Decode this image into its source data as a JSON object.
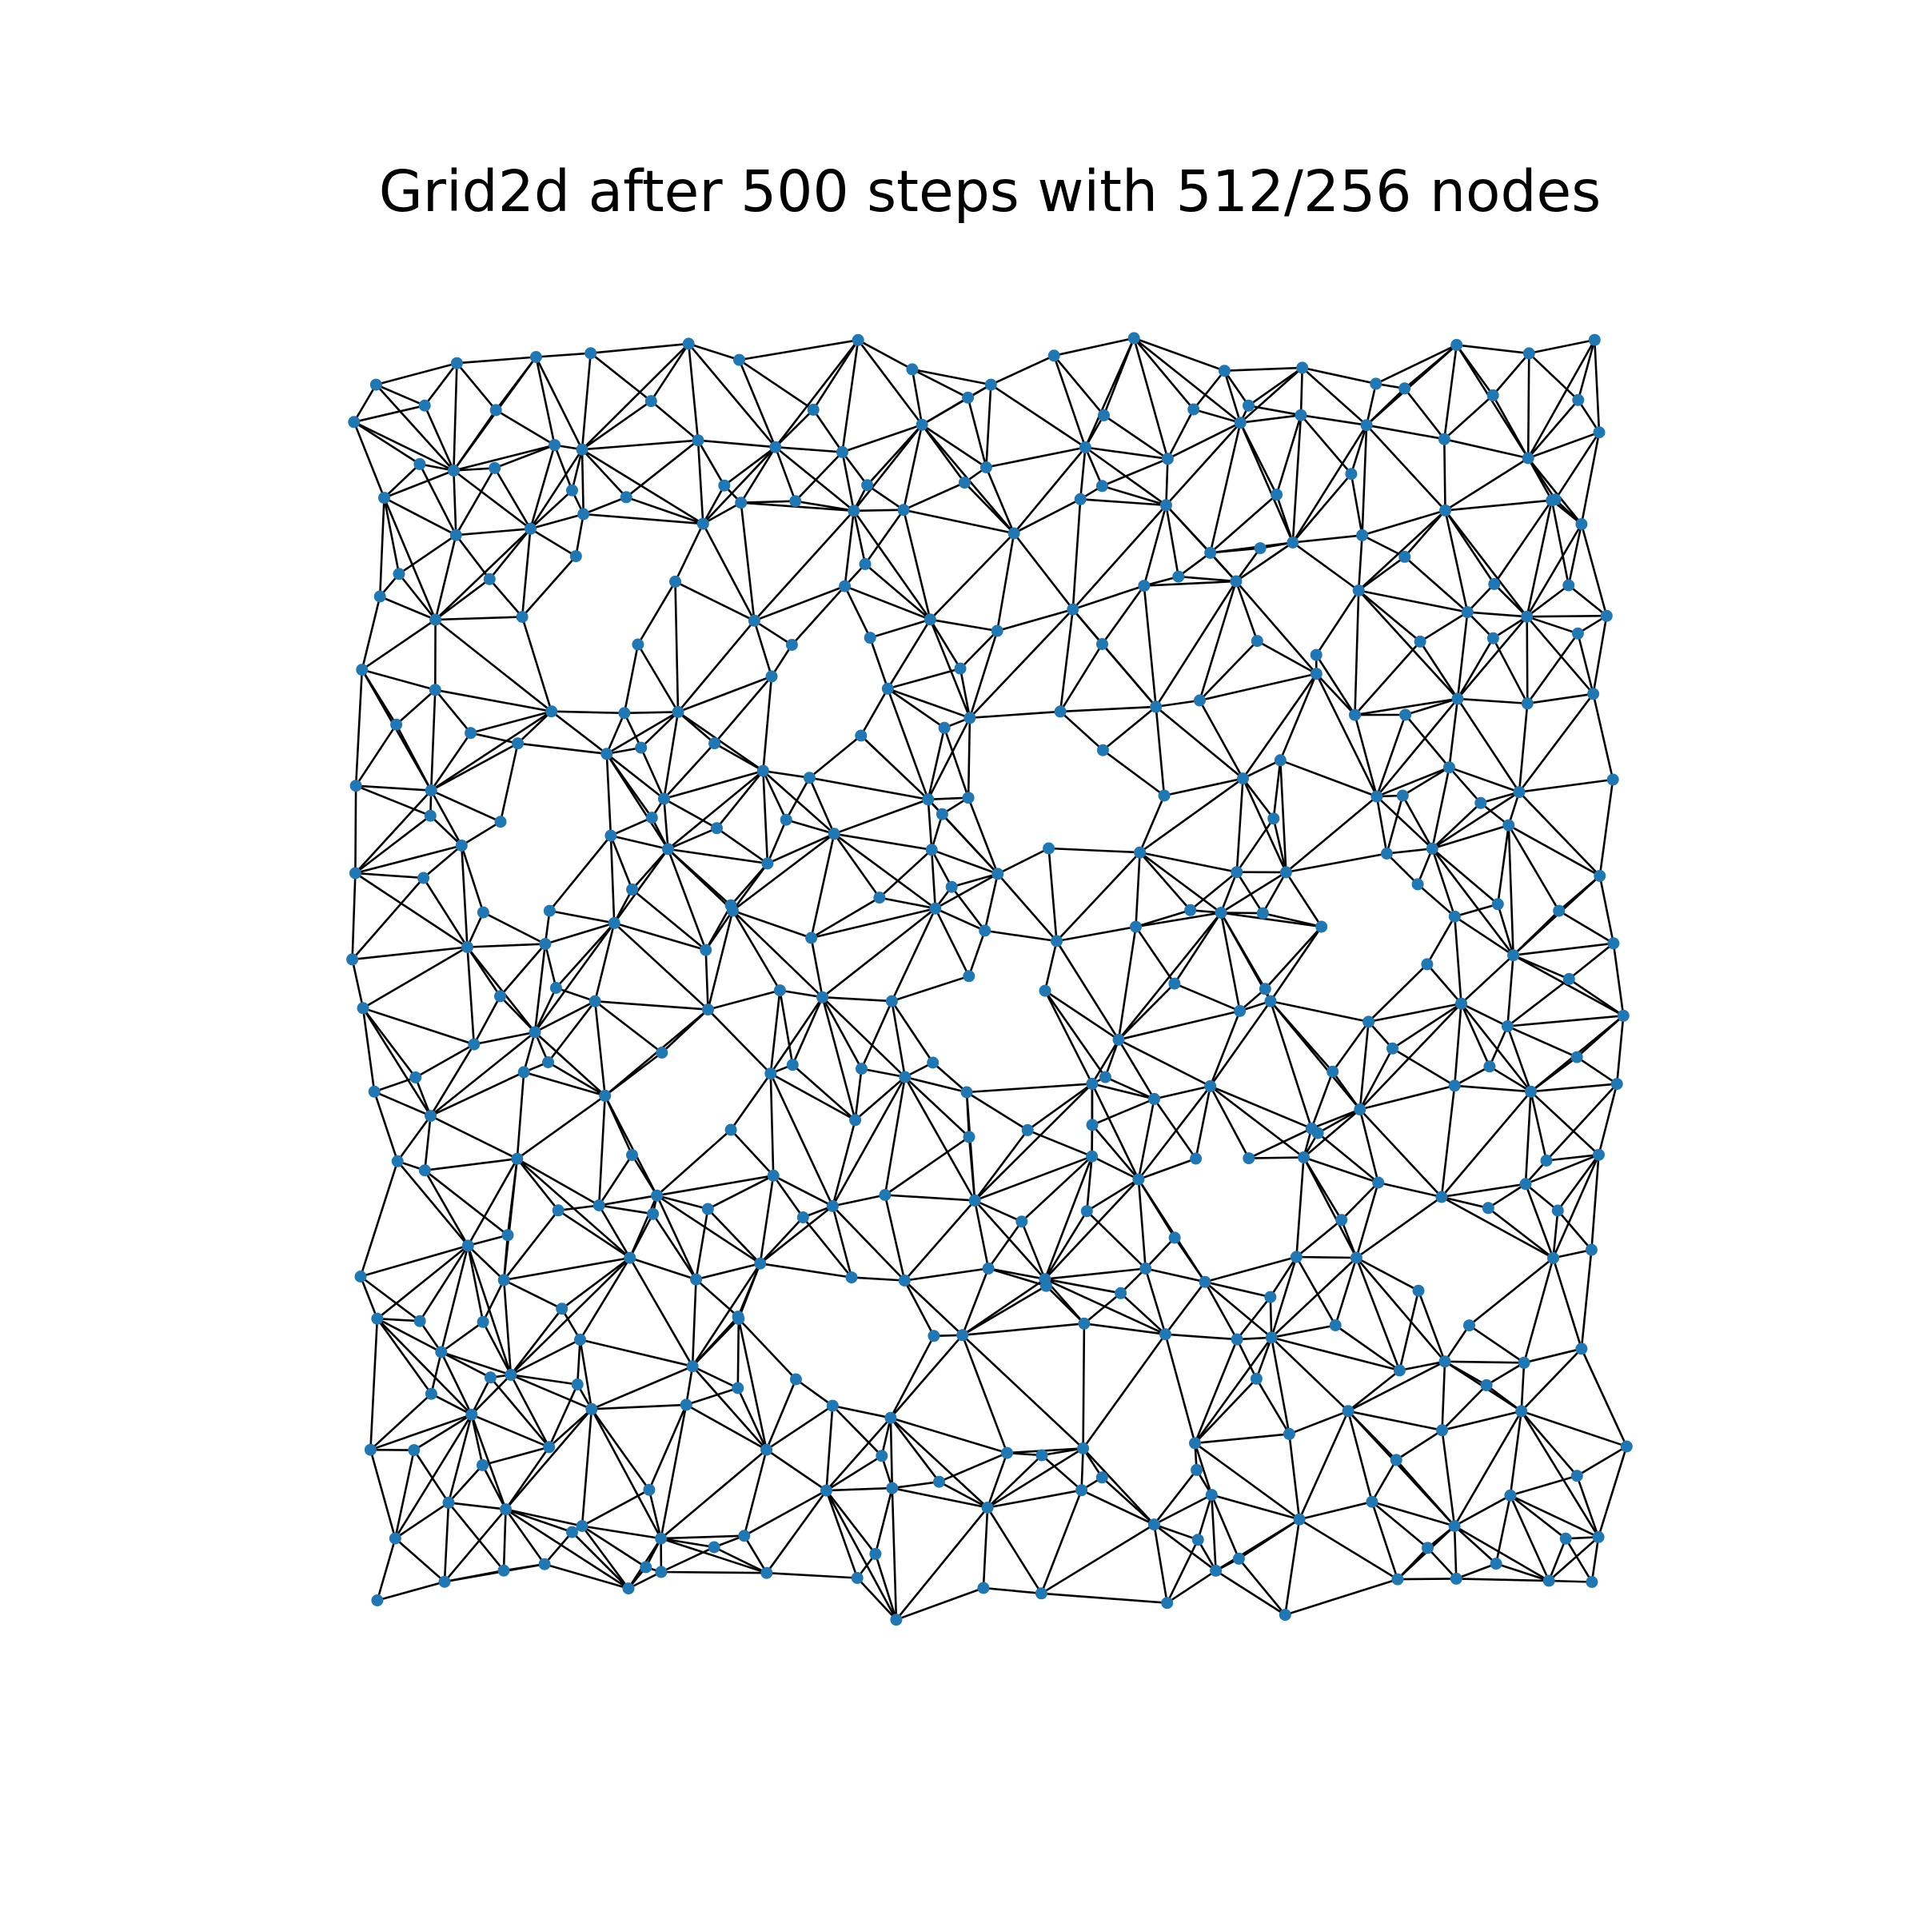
{
  "title": "Grid2d after 500 steps with 512/256 nodes",
  "colors": {
    "node": "#1f77b4",
    "edge": "#000000",
    "background": "#ffffff"
  }
}
